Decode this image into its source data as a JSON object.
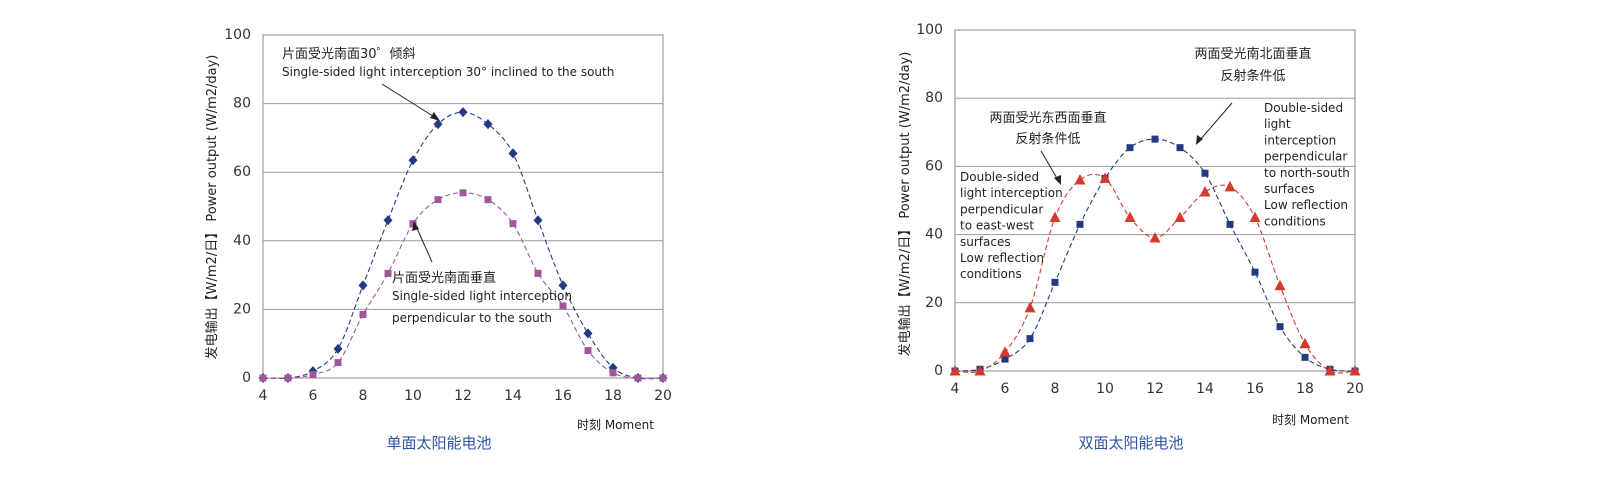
{
  "chart_data": [
    {
      "type": "scatter",
      "caption": "单面太阳能电池",
      "ylabel": "发电输出【W/m2/日】 Power output (W/m2/day)",
      "xunit": "时刻  Moment",
      "xlim": [
        4,
        20
      ],
      "ylim": [
        0,
        100
      ],
      "xticks": [
        4,
        6,
        8,
        10,
        12,
        14,
        16,
        18,
        20
      ],
      "yticks": [
        0,
        20,
        40,
        60,
        80,
        100
      ],
      "grid": "horizontal",
      "series": [
        {
          "color": "#233a80",
          "marker": "diamond",
          "x": [
            4,
            5,
            6,
            7,
            8,
            9,
            10,
            11,
            12,
            13,
            14,
            15,
            16,
            17,
            18,
            19,
            20
          ],
          "values": [
            0,
            0,
            2,
            8.5,
            27,
            46,
            63.5,
            74,
            77.5,
            74,
            65.5,
            46,
            27,
            13,
            3,
            0,
            0
          ]
        },
        {
          "color": "#a0569c",
          "marker": "square",
          "x": [
            4,
            5,
            6,
            7,
            8,
            9,
            10,
            11,
            12,
            13,
            14,
            15,
            16,
            17,
            18,
            19,
            20
          ],
          "values": [
            0,
            0,
            1,
            4.5,
            18.5,
            30.5,
            45,
            52,
            54,
            52,
            45,
            30.5,
            21,
            8,
            1.5,
            0,
            0
          ]
        }
      ],
      "annotations": [
        {
          "cn": "片面受光南面30゜倾斜",
          "en": "Single-sided light interception 30° inclined to the south"
        },
        {
          "cn": "片面受光南面垂直",
          "en1": "Single-sided light interception",
          "en2": "perpendicular to the south"
        }
      ]
    },
    {
      "type": "scatter",
      "caption": "双面太阳能电池",
      "ylabel": "发电输出【W/m2/日】 Power output (W/m2/day)",
      "xunit": "时刻  Moment",
      "xlim": [
        4,
        20
      ],
      "ylim": [
        0,
        100
      ],
      "xticks": [
        4,
        6,
        8,
        10,
        12,
        14,
        16,
        18,
        20
      ],
      "yticks": [
        0,
        20,
        40,
        60,
        80,
        100
      ],
      "grid": "horizontal",
      "series": [
        {
          "color": "#233a80",
          "marker": "square",
          "x": [
            4,
            5,
            6,
            7,
            8,
            9,
            10,
            11,
            12,
            13,
            14,
            15,
            16,
            17,
            18,
            19,
            20
          ],
          "values": [
            0,
            0.5,
            3.5,
            9.5,
            26,
            43,
            56.5,
            65.5,
            68,
            65.5,
            58,
            43,
            29,
            13,
            4,
            0.5,
            0
          ]
        },
        {
          "color": "#d23a2e",
          "marker": "triangle",
          "x": [
            4,
            5,
            6,
            7,
            8,
            9,
            10,
            11,
            12,
            13,
            14,
            15,
            16,
            17,
            18,
            19,
            20
          ],
          "values": [
            0,
            0,
            5.5,
            18.5,
            45,
            56,
            56.5,
            45,
            39,
            45,
            52.5,
            54,
            45,
            25,
            8,
            0,
            0
          ]
        }
      ],
      "annotations": [
        {
          "cn1": "两面受光南北面垂直",
          "cn2": "反射条件低",
          "en": [
            "Double-sided",
            "light",
            "interception",
            "perpendicular",
            "to north-south",
            "surfaces",
            "Low reflection",
            "conditions"
          ]
        },
        {
          "cn1": "两面受光东西面垂直",
          "cn2": "反射条件低",
          "en": [
            "Double-sided",
            "light interception",
            "perpendicular",
            "to east-west",
            "surfaces",
            "Low reflection",
            "conditions"
          ]
        }
      ]
    }
  ]
}
